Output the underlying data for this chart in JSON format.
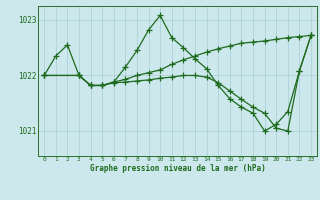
{
  "title": "Graphe pression niveau de la mer (hPa)",
  "bg_color": "#cce8ec",
  "grid_color": "#a8cdd4",
  "line_color": "#1e6b1e",
  "xlim": [
    -0.5,
    23.5
  ],
  "ylim": [
    1020.55,
    1023.25
  ],
  "yticks": [
    1021,
    1022,
    1023
  ],
  "xticks": [
    0,
    1,
    2,
    3,
    4,
    5,
    6,
    7,
    8,
    9,
    10,
    11,
    12,
    13,
    14,
    15,
    16,
    17,
    18,
    19,
    20,
    21,
    22,
    23
  ],
  "series1_x": [
    0,
    1,
    2,
    3,
    4,
    5,
    6,
    7,
    8,
    9,
    10,
    11,
    12,
    13,
    14,
    15,
    16,
    17,
    18,
    19,
    20,
    21,
    22,
    23
  ],
  "series1_y": [
    1022.0,
    1022.35,
    1022.55,
    1022.0,
    1021.82,
    1021.82,
    1021.88,
    1022.15,
    1022.45,
    1022.82,
    1023.08,
    1022.68,
    1022.5,
    1022.3,
    1022.12,
    1021.82,
    1021.58,
    1021.43,
    1021.32,
    1021.0,
    1021.12,
    1021.35,
    1022.08,
    1022.72
  ],
  "series2_x": [
    0,
    3,
    4,
    5,
    6,
    7,
    8,
    9,
    10,
    11,
    12,
    13,
    14,
    15,
    16,
    17,
    18,
    19,
    20,
    21,
    22,
    23
  ],
  "series2_y": [
    1022.0,
    1022.0,
    1021.82,
    1021.82,
    1021.88,
    1021.93,
    1022.0,
    1022.05,
    1022.1,
    1022.2,
    1022.28,
    1022.35,
    1022.42,
    1022.48,
    1022.53,
    1022.58,
    1022.6,
    1022.62,
    1022.65,
    1022.68,
    1022.7,
    1022.72
  ],
  "series3_x": [
    0,
    3,
    4,
    5,
    6,
    7,
    8,
    9,
    10,
    11,
    12,
    13,
    14,
    15,
    16,
    17,
    18,
    19,
    20,
    21,
    22,
    23
  ],
  "series3_y": [
    1022.0,
    1022.0,
    1021.82,
    1021.82,
    1021.87,
    1021.88,
    1021.9,
    1021.92,
    1021.95,
    1021.97,
    1022.0,
    1022.0,
    1021.97,
    1021.87,
    1021.72,
    1021.57,
    1021.43,
    1021.32,
    1021.05,
    1021.0,
    1022.08,
    1022.72
  ]
}
